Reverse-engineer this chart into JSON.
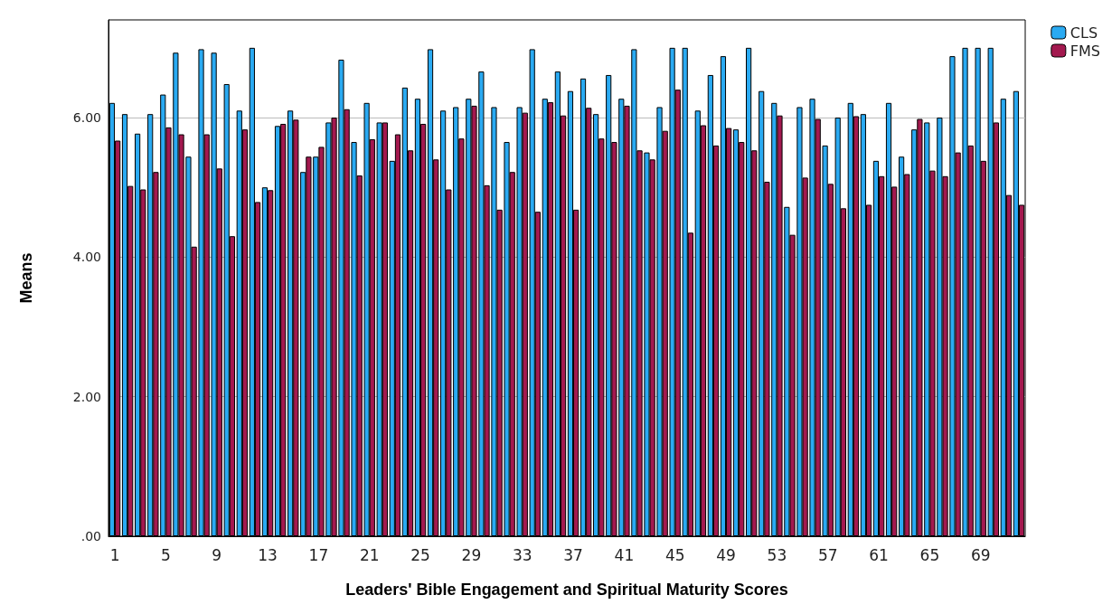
{
  "chart_data": {
    "type": "bar",
    "xlabel": "Leaders' Bible Engagement and Spiritual Maturity Scores",
    "ylabel": "Means",
    "categories": [
      "1",
      null,
      null,
      null,
      "5",
      null,
      null,
      null,
      "9",
      null,
      null,
      null,
      "13",
      null,
      null,
      null,
      "17",
      null,
      null,
      null,
      "21",
      null,
      null,
      null,
      "25",
      null,
      null,
      null,
      "29",
      null,
      null,
      null,
      "33",
      null,
      null,
      null,
      "37",
      null,
      null,
      null,
      "41",
      null,
      null,
      null,
      "45",
      null,
      null,
      null,
      "49",
      null,
      null,
      null,
      "53",
      null,
      null,
      null,
      "57",
      null,
      null,
      null,
      "61",
      null,
      null,
      null,
      "65",
      null,
      null,
      null,
      "69",
      null,
      null,
      null
    ],
    "series": [
      {
        "name": "CLS",
        "color": "#2aaaf2",
        "values": [
          6.21,
          6.05,
          5.77,
          6.05,
          6.33,
          6.93,
          5.44,
          6.98,
          6.93,
          6.48,
          6.1,
          7.0,
          5.0,
          5.88,
          6.1,
          5.22,
          5.44,
          5.93,
          6.83,
          5.65,
          6.21,
          5.93,
          5.38,
          6.43,
          6.27,
          6.98,
          6.1,
          6.15,
          6.27,
          6.66,
          6.15,
          5.65,
          6.15,
          6.98,
          6.27,
          6.66,
          6.38,
          6.56,
          6.05,
          6.61,
          6.27,
          6.98,
          5.5,
          6.15,
          7.0,
          7.0,
          6.1,
          6.61,
          6.88,
          5.83,
          7.0,
          6.38,
          6.21,
          4.72,
          6.15,
          6.27,
          5.6,
          6.0,
          6.21,
          6.05,
          5.38,
          6.21,
          5.44,
          5.83,
          5.93,
          6.0,
          6.88,
          7.0,
          7.0,
          7.0,
          6.27,
          6.38
        ]
      },
      {
        "name": "FMS",
        "color": "#a3194f",
        "values": [
          5.67,
          5.02,
          4.97,
          5.22,
          5.86,
          5.76,
          4.15,
          5.76,
          5.27,
          4.3,
          5.83,
          4.79,
          4.96,
          5.91,
          5.97,
          5.44,
          5.58,
          6.0,
          6.12,
          5.17,
          5.69,
          5.93,
          5.76,
          5.53,
          5.91,
          5.4,
          4.97,
          5.7,
          6.17,
          5.03,
          4.68,
          5.22,
          6.07,
          4.65,
          6.22,
          6.03,
          4.68,
          6.14,
          5.7,
          5.65,
          6.17,
          5.53,
          5.4,
          5.81,
          6.4,
          4.35,
          5.89,
          5.6,
          5.85,
          5.65,
          5.53,
          5.08,
          6.03,
          4.32,
          5.14,
          5.98,
          5.05,
          4.7,
          6.02,
          4.75,
          5.16,
          5.01,
          5.19,
          5.98,
          5.24,
          5.16,
          5.5,
          5.6,
          5.38,
          5.93,
          4.89,
          4.75
        ]
      }
    ],
    "ylim": [
      0,
      7.4
    ],
    "yticks": [
      {
        "value": 0,
        "label": ".00"
      },
      {
        "value": 2,
        "label": "2.00"
      },
      {
        "value": 4,
        "label": "4.00"
      },
      {
        "value": 6,
        "label": "6.00"
      }
    ],
    "grid": "y",
    "legend": "top right"
  }
}
